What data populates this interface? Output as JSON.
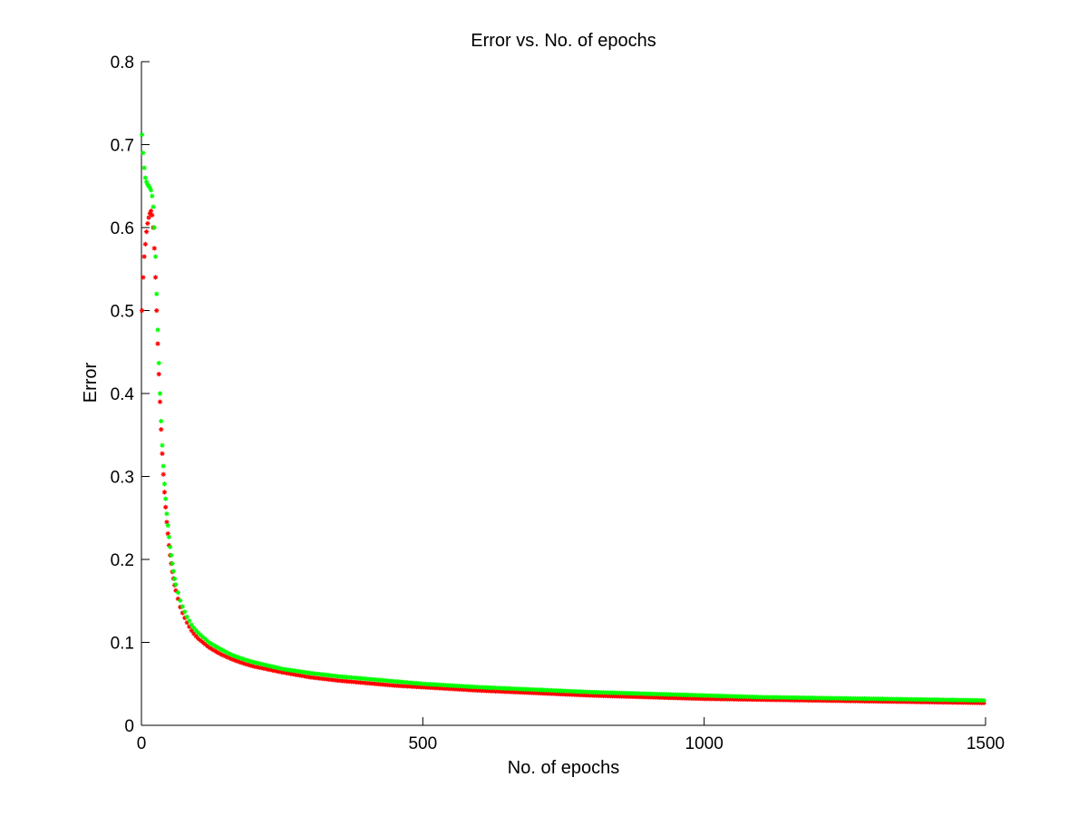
{
  "chart_data": {
    "type": "scatter",
    "title": "Error vs. No. of epochs",
    "xlabel": "No. of epochs",
    "ylabel": "Error",
    "xlim": [
      0,
      1500
    ],
    "ylim": [
      0,
      0.8
    ],
    "xticks": [
      0,
      500,
      1000,
      1500
    ],
    "xtick_labels": [
      "0",
      "500",
      "1000",
      "1500"
    ],
    "yticks": [
      0,
      0.1,
      0.2,
      0.3,
      0.4,
      0.5,
      0.6,
      0.7,
      0.8
    ],
    "ytick_labels": [
      "0",
      "0.1",
      "0.2",
      "0.3",
      "0.4",
      "0.5",
      "0.6",
      "0.7",
      "0.8"
    ],
    "grid": false,
    "marker": "asterisk",
    "series": [
      {
        "color": "#ff0000",
        "x": [
          1,
          3,
          5,
          7,
          9,
          11,
          13,
          15,
          17,
          19,
          21,
          23,
          25,
          27,
          30,
          33,
          36,
          40,
          45,
          50,
          55,
          60,
          70,
          80,
          90,
          100,
          120,
          140,
          160,
          180,
          200,
          250,
          300,
          350,
          400,
          450,
          500,
          600,
          700,
          800,
          900,
          1000,
          1100,
          1200,
          1300,
          1400,
          1500
        ],
        "y": [
          0.5,
          0.54,
          0.565,
          0.58,
          0.595,
          0.605,
          0.612,
          0.617,
          0.62,
          0.615,
          0.6,
          0.575,
          0.54,
          0.5,
          0.44,
          0.39,
          0.34,
          0.29,
          0.245,
          0.21,
          0.185,
          0.165,
          0.14,
          0.125,
          0.113,
          0.105,
          0.094,
          0.086,
          0.08,
          0.075,
          0.071,
          0.064,
          0.058,
          0.054,
          0.051,
          0.048,
          0.046,
          0.042,
          0.039,
          0.036,
          0.034,
          0.032,
          0.031,
          0.03,
          0.029,
          0.028,
          0.027
        ]
      },
      {
        "color": "#00ff00",
        "x": [
          1,
          3,
          5,
          7,
          9,
          11,
          13,
          15,
          17,
          19,
          21,
          23,
          25,
          27,
          30,
          33,
          36,
          40,
          45,
          50,
          55,
          60,
          70,
          80,
          90,
          100,
          120,
          140,
          160,
          180,
          200,
          250,
          300,
          350,
          400,
          450,
          500,
          600,
          700,
          800,
          900,
          1000,
          1100,
          1200,
          1300,
          1400,
          1500
        ],
        "y": [
          0.712,
          0.69,
          0.672,
          0.66,
          0.655,
          0.652,
          0.65,
          0.648,
          0.645,
          0.638,
          0.625,
          0.6,
          0.565,
          0.52,
          0.455,
          0.4,
          0.35,
          0.3,
          0.255,
          0.22,
          0.195,
          0.172,
          0.148,
          0.132,
          0.12,
          0.112,
          0.1,
          0.092,
          0.085,
          0.08,
          0.076,
          0.068,
          0.063,
          0.059,
          0.056,
          0.053,
          0.05,
          0.046,
          0.043,
          0.04,
          0.038,
          0.036,
          0.034,
          0.033,
          0.032,
          0.031,
          0.03
        ]
      }
    ]
  }
}
